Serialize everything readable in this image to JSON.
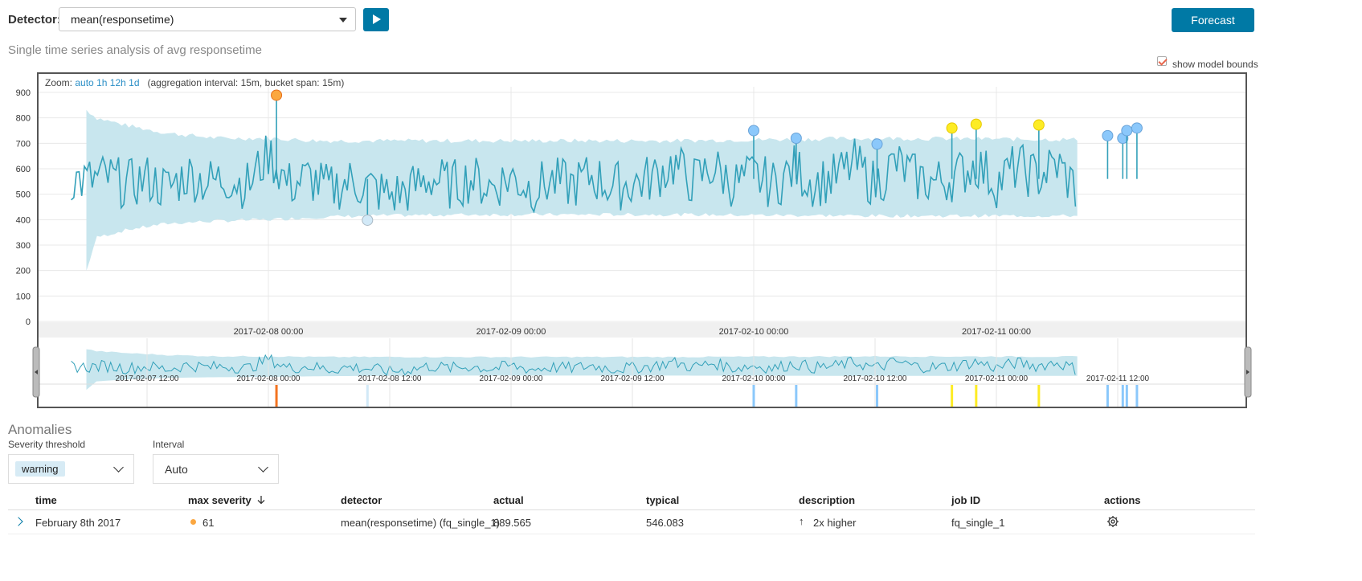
{
  "toolbar": {
    "detector_label": "Detector:",
    "detector_value": "mean(responsetime)",
    "forecast_label": "Forecast"
  },
  "page_title": "Single time series analysis of avg responsetime",
  "show_model_bounds": {
    "label": "show model bounds",
    "checked": true
  },
  "zoom": {
    "prefix": "Zoom:",
    "options": [
      "auto",
      "1h",
      "12h",
      "1d"
    ],
    "info": "(aggregation interval: 15m, bucket span: 15m)"
  },
  "colors": {
    "accent": "#0079a5",
    "line": "#32a0b9",
    "bounds": "#c8e6ee",
    "critical": "#fe5050",
    "major": "#fba740",
    "minor": "#fdec25",
    "warning": "#8bc8fb",
    "low": "#d2e9f7"
  },
  "chart_data": [
    {
      "type": "line",
      "title": "",
      "xlabel": "",
      "ylabel": "",
      "y_ticks": [
        0,
        100,
        200,
        300,
        400,
        500,
        600,
        700,
        800,
        900
      ],
      "ylim": [
        0,
        900
      ],
      "x_ticks": [
        "2017-02-08 00:00",
        "2017-02-09 00:00",
        "2017-02-10 00:00",
        "2017-02-11 00:00"
      ],
      "grid": true,
      "x_range_hours": [
        -19.5,
        80.0
      ],
      "series": [
        {
          "x": [
            -19.5,
            -18,
            -16,
            -14,
            -12,
            -10,
            -8,
            -6,
            -4,
            -2,
            0,
            2,
            4,
            6,
            8,
            10,
            12,
            14,
            16,
            18,
            20,
            22,
            24,
            26,
            28,
            30,
            32,
            34,
            36,
            38,
            40,
            42,
            44,
            46,
            48,
            50,
            52,
            54,
            56,
            58,
            60,
            62,
            64,
            66,
            68,
            70,
            72,
            74,
            76,
            78,
            80
          ],
          "values": [
            600,
            560,
            610,
            520,
            590,
            480,
            640,
            550,
            600,
            510,
            880,
            520,
            600,
            470,
            560,
            500,
            400,
            470,
            600,
            520,
            590,
            500,
            610,
            480,
            560,
            520,
            620,
            500,
            540,
            600,
            750,
            560,
            720,
            530,
            620,
            520,
            700,
            540,
            600,
            760,
            520,
            770,
            600,
            550,
            620,
            760,
            540,
            730,
            610,
            750,
            460
          ]
        }
      ],
      "model_bounds": {
        "x": [
          -19.5,
          -17,
          -14,
          -10,
          -5,
          0,
          5,
          10,
          20,
          40,
          60,
          80
        ],
        "upper": [
          880,
          800,
          770,
          740,
          720,
          720,
          710,
          710,
          710,
          710,
          720,
          715
        ],
        "lower": [
          0,
          330,
          360,
          385,
          395,
          400,
          410,
          415,
          420,
          420,
          415,
          415
        ]
      },
      "anomalies": [
        {
          "x": 0.8,
          "y": 889,
          "severity": "major"
        },
        {
          "x": 9.8,
          "y": 398,
          "severity": "low"
        },
        {
          "x": 48.0,
          "y": 750,
          "severity": "warning"
        },
        {
          "x": 52.2,
          "y": 720,
          "severity": "warning"
        },
        {
          "x": 60.2,
          "y": 697,
          "severity": "warning"
        },
        {
          "x": 67.6,
          "y": 760,
          "severity": "minor"
        },
        {
          "x": 70.0,
          "y": 775,
          "severity": "minor"
        },
        {
          "x": 76.2,
          "y": 772,
          "severity": "minor"
        },
        {
          "x": 83.0,
          "y": 730,
          "severity": "warning"
        },
        {
          "x": 84.5,
          "y": 720,
          "severity": "warning"
        },
        {
          "x": 84.9,
          "y": 750,
          "severity": "warning"
        },
        {
          "x": 85.9,
          "y": 760,
          "severity": "warning"
        }
      ]
    },
    {
      "type": "line",
      "title": "",
      "x_ticks": [
        "2017-02-07 12:00",
        "2017-02-08 00:00",
        "2017-02-08 12:00",
        "2017-02-09 00:00",
        "2017-02-09 12:00",
        "2017-02-10 00:00",
        "2017-02-10 12:00",
        "2017-02-11 00:00",
        "2017-02-11 12:00"
      ]
    }
  ],
  "anomalies_section": {
    "title": "Anomalies",
    "severity_label": "Severity threshold",
    "severity_value": "warning",
    "interval_label": "Interval",
    "interval_value": "Auto",
    "columns": [
      "time",
      "max severity",
      "detector",
      "actual",
      "typical",
      "description",
      "job ID",
      "actions"
    ],
    "rows": [
      {
        "time": "February 8th 2017",
        "severity": "61",
        "detector": "mean(responsetime) (fq_single_1)",
        "actual": "889.565",
        "typical": "546.083",
        "description": "2x higher",
        "job_id": "fq_single_1"
      }
    ]
  }
}
